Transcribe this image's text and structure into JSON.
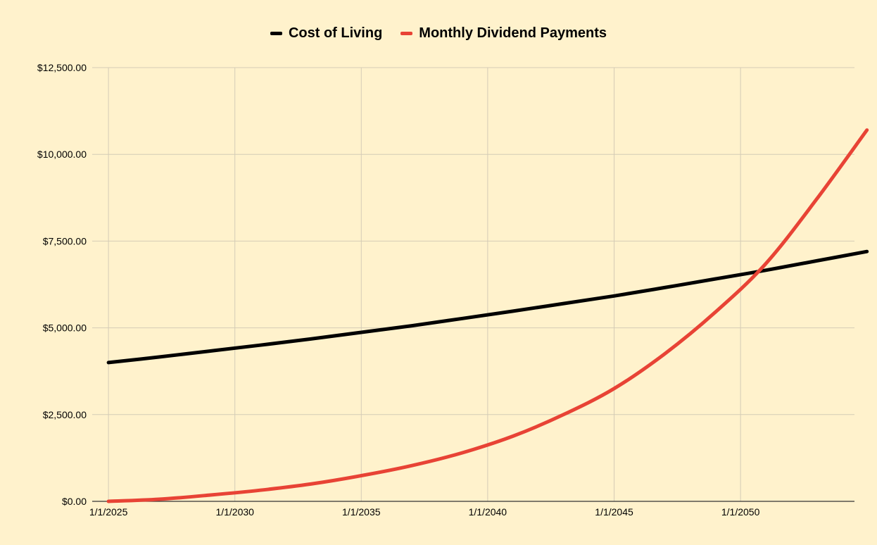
{
  "chart_data": {
    "type": "line",
    "title": "",
    "xlabel": "",
    "ylabel": "",
    "legend_position": "top-center",
    "grid": true,
    "x_ticks": [
      "1/1/2025",
      "1/1/2030",
      "1/1/2035",
      "1/1/2040",
      "1/1/2045",
      "1/1/2050"
    ],
    "y_ticks": [
      "$0.00",
      "$2,500.00",
      "$5,000.00",
      "$7,500.00",
      "$10,000.00",
      "$12,500.00"
    ],
    "xlim": [
      "1/1/2025",
      "1/1/2055"
    ],
    "ylim": [
      0,
      12500
    ],
    "x": [
      "1/1/2025",
      "1/1/2027",
      "1/1/2029",
      "1/1/2031",
      "1/1/2033",
      "1/1/2035",
      "1/1/2037",
      "1/1/2039",
      "1/1/2041",
      "1/1/2043",
      "1/1/2045",
      "1/1/2047",
      "1/1/2049",
      "1/1/2051",
      "1/1/2053",
      "1/1/2055"
    ],
    "series": [
      {
        "name": "Cost of Living",
        "color": "#000000",
        "values": [
          4000,
          4160,
          4330,
          4500,
          4680,
          4870,
          5060,
          5270,
          5480,
          5700,
          5920,
          6160,
          6410,
          6660,
          6930,
          7200
        ]
      },
      {
        "name": "Monthly Dividend Payments",
        "color": "#e84335",
        "values": [
          0,
          60,
          180,
          320,
          500,
          740,
          1030,
          1400,
          1880,
          2500,
          3250,
          4250,
          5450,
          6850,
          8700,
          10700
        ]
      }
    ]
  },
  "colors": {
    "background": "#fff2cc",
    "grid": "#d4ccb6",
    "axis": "#333333"
  }
}
